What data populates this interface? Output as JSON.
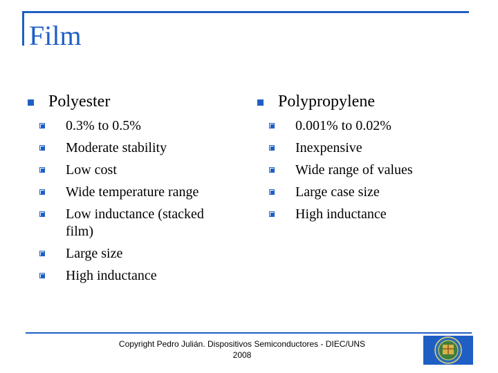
{
  "title": "Film",
  "columns": [
    {
      "heading": "Polyester",
      "items": [
        "0.3% to 0.5%",
        "Moderate stability",
        "Low cost",
        "Wide temperature range",
        "Low inductance (stacked film)",
        "Large size",
        "High inductance"
      ]
    },
    {
      "heading": "Polypropylene",
      "items": [
        "0.001% to 0.02%",
        "Inexpensive",
        "Wide range of values",
        "Large case size",
        "High inductance"
      ]
    }
  ],
  "footer": {
    "line1": "Copyright Pedro Julián. Dispositivos Semiconductores - DIEC/UNS",
    "line2": "2008"
  },
  "colors": {
    "accent": "#1f5fc4",
    "text": "#000000",
    "background": "#ffffff"
  },
  "icons": {
    "bullet_main": "square-bullet-icon",
    "bullet_sub": "checkbox-bullet-icon",
    "logo": "university-seal-logo"
  }
}
